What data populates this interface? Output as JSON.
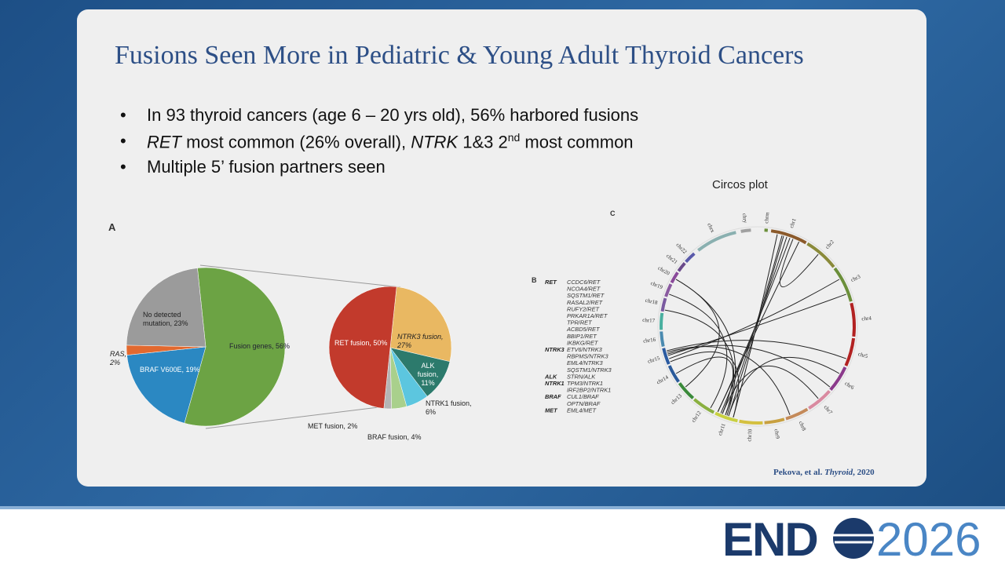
{
  "title": "Fusions Seen More in Pediatric & Young Adult Thyroid Cancers",
  "bullets": [
    [
      "In 93 thyroid cancers (age 6 – 20 yrs old), 56% harbored fusions"
    ],
    [
      "RET",
      " most common (26% overall), ",
      "NTRK",
      " 1&3 2",
      "nd",
      " most common"
    ],
    [
      "Multiple 5’ fusion partners seen"
    ]
  ],
  "panel_a": {
    "letter": "A",
    "pie_main": {
      "labels": [
        "Fusion genes, 56%",
        "BRAF V600E, 19%",
        "RAS, 2%",
        "No detected mutation, 23%"
      ],
      "values": [
        56,
        19,
        2,
        23
      ],
      "colors": [
        "#6ca344",
        "#2b88c2",
        "#e2692f",
        "#9b9b9b"
      ]
    },
    "pie_fusion": {
      "labels": [
        "NTRK3 fusion, 27%",
        "ALK fusion, 11%",
        "NTRK1 fusion, 6%",
        "BRAF fusion, 4%",
        "MET fusion, 2%",
        "RET fusion, 50%"
      ],
      "values": [
        27,
        11,
        6,
        4,
        2,
        50
      ],
      "colors": [
        "#e9b862",
        "#2c7a6c",
        "#5cc6df",
        "#a9d08c",
        "#b5b5b5",
        "#c23a2c"
      ]
    }
  },
  "panel_b": {
    "letter": "B",
    "groups": [
      {
        "gene": "RET",
        "fusions": [
          "CCDC6/RET",
          "NCOA4/RET",
          "SQSTM1/RET",
          "RASAL2/RET",
          "RUFY2/RET",
          "PRKAR1A/RET",
          "TPR/RET",
          "ACBD5/RET",
          "BBIP1/RET",
          "IKBKG/RET"
        ]
      },
      {
        "gene": "NTRK3",
        "fusions": [
          "ETV6/NTRK3",
          "RBPMS/NTRK3",
          "EML4/NTRK3",
          "SQSTM1/NTRK3"
        ]
      },
      {
        "gene": "ALK",
        "fusions": [
          "STRN/ALK"
        ]
      },
      {
        "gene": "NTRK1",
        "fusions": [
          "TPM3/NTRK1",
          "IRF2BP2/NTRK1"
        ]
      },
      {
        "gene": "BRAF",
        "fusions": [
          "CUL1/BRAF",
          "OPTN/BRAF"
        ]
      },
      {
        "gene": "MET",
        "fusions": [
          "EML4/MET"
        ]
      }
    ]
  },
  "panel_c": {
    "letter": "C",
    "caption": "Circos plot",
    "chromosomes": [
      "chrm",
      "chr1",
      "chr2",
      "chr3",
      "chr4",
      "chr5",
      "chr6",
      "chr7",
      "chr8",
      "chr9",
      "chr10",
      "chr11",
      "chr12",
      "chr13",
      "chr14",
      "chr15",
      "chr16",
      "chr17",
      "chr18",
      "chr19",
      "chr20",
      "chr21",
      "chr22",
      "chrx",
      "chry"
    ]
  },
  "citation": [
    "Pekova, et al. ",
    "Thyroid",
    ", 2020"
  ],
  "logo": {
    "left": "END",
    "right": "2026"
  }
}
